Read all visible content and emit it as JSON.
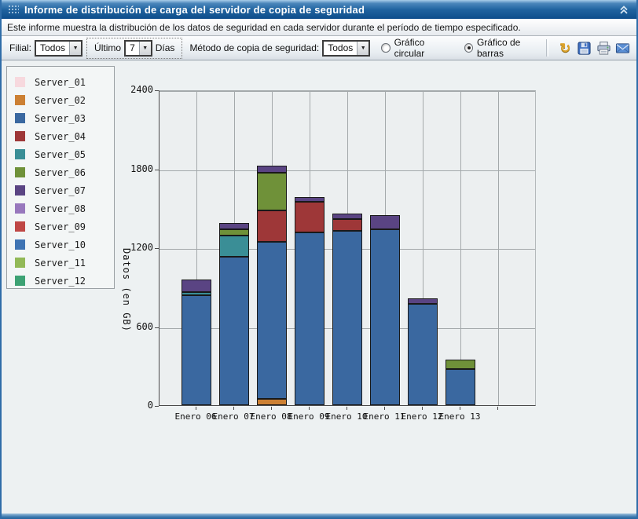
{
  "window": {
    "title": "Informe de distribución de carga del servidor de copia de seguridad",
    "subtitle": "Este informe muestra la distribución de los datos de seguridad en cada servidor durante el período de tiempo especificado."
  },
  "toolbar": {
    "filial_label": "Filial:",
    "filial_value": "Todos",
    "ultimo_label": "Último",
    "days_value": "7",
    "days_label": "Días",
    "method_label": "Método de copia de seguridad:",
    "method_value": "Todos",
    "radio_pie_label": "Gráfico circular",
    "radio_bar_label": "Gráfico de barras",
    "selected_chart": "Gráfico de barras",
    "dropdown_arrow": "▼",
    "refresh_glyph": "↻",
    "icons": [
      "refresh-icon",
      "save-icon",
      "print-icon",
      "email-icon"
    ]
  },
  "legend": {
    "items": [
      {
        "label": "Server_01",
        "color": "#f7d9de"
      },
      {
        "label": "Server_02",
        "color": "#cc8033"
      },
      {
        "label": "Server_03",
        "color": "#3a68a0"
      },
      {
        "label": "Server_04",
        "color": "#9e3738"
      },
      {
        "label": "Server_05",
        "color": "#3a8e96"
      },
      {
        "label": "Server_06",
        "color": "#6f9139"
      },
      {
        "label": "Server_07",
        "color": "#5a4483"
      },
      {
        "label": "Server_08",
        "color": "#9878bd"
      },
      {
        "label": "Server_09",
        "color": "#bf4745"
      },
      {
        "label": "Server_10",
        "color": "#3f74b3"
      },
      {
        "label": "Server_11",
        "color": "#92b957"
      },
      {
        "label": "Server_12",
        "color": "#3da274"
      }
    ]
  },
  "chart_data": {
    "type": "bar",
    "stacked": true,
    "title": "",
    "xlabel": "",
    "ylabel": "Datos (en GB)",
    "ylim": [
      0,
      2400
    ],
    "yticks": [
      0,
      600,
      1200,
      1800,
      2400
    ],
    "grid": true,
    "legend_position": "left",
    "categories": [
      "Enero 06",
      "Enero 07",
      "Enero 08",
      "Enero 09",
      "Enero 10",
      "Enero 11",
      "Enero 12",
      "Enero 13"
    ],
    "series": [
      {
        "name": "Server_02",
        "color": "#cc8033",
        "values": [
          0,
          0,
          50,
          0,
          0,
          0,
          0,
          0
        ]
      },
      {
        "name": "Server_03",
        "color": "#3a68a0",
        "values": [
          835,
          1130,
          1190,
          1315,
          1325,
          1340,
          770,
          275
        ]
      },
      {
        "name": "Server_04",
        "color": "#9e3738",
        "values": [
          0,
          0,
          240,
          230,
          90,
          0,
          0,
          0
        ]
      },
      {
        "name": "Server_05",
        "color": "#3a8e96",
        "values": [
          25,
          160,
          0,
          0,
          0,
          0,
          0,
          0
        ]
      },
      {
        "name": "Server_06",
        "color": "#6f9139",
        "values": [
          0,
          45,
          290,
          0,
          0,
          0,
          0,
          70
        ]
      },
      {
        "name": "Server_07",
        "color": "#5a4483",
        "values": [
          95,
          50,
          50,
          40,
          40,
          105,
          45,
          0
        ]
      }
    ],
    "totals": [
      955,
      1385,
      1820,
      1585,
      1455,
      1445,
      815,
      345
    ]
  }
}
